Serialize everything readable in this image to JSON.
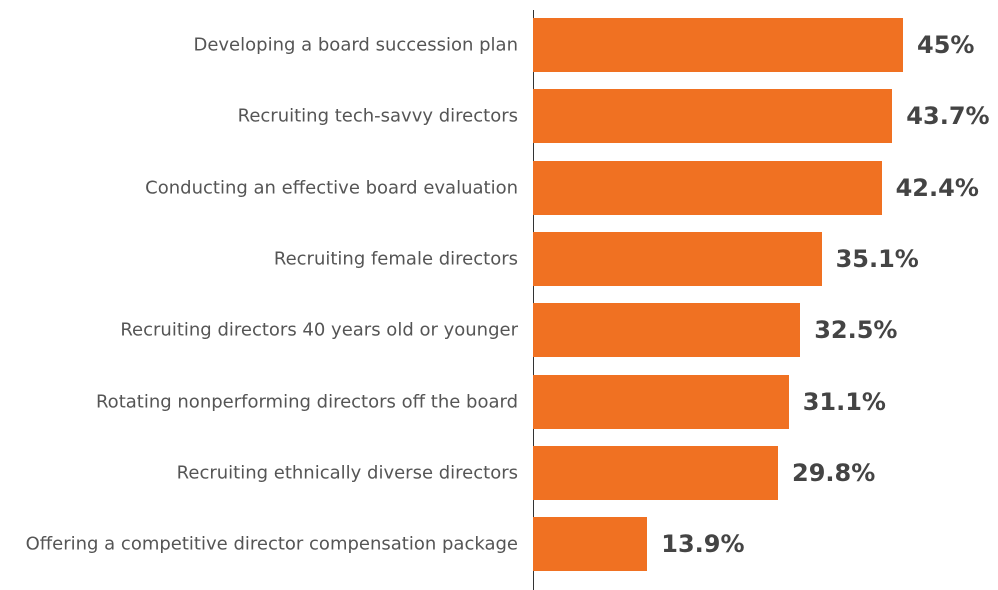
{
  "chart_data": {
    "type": "bar",
    "orientation": "horizontal",
    "categories": [
      "Developing a board succession plan",
      "Recruiting tech-savvy directors",
      "Conducting an effective board evaluation",
      "Recruiting female directors",
      "Recruiting directors 40 years old or younger",
      "Rotating nonperforming directors off the board",
      "Recruiting ethnically diverse directors",
      "Offering a competitive director compensation package"
    ],
    "values": [
      45,
      43.7,
      42.4,
      35.1,
      32.5,
      31.1,
      29.8,
      13.9
    ],
    "value_labels": [
      "45%",
      "43.7%",
      "42.4%",
      "35.1%",
      "32.5%",
      "31.1%",
      "29.8%",
      "13.9%"
    ],
    "color": "#f07122"
  }
}
